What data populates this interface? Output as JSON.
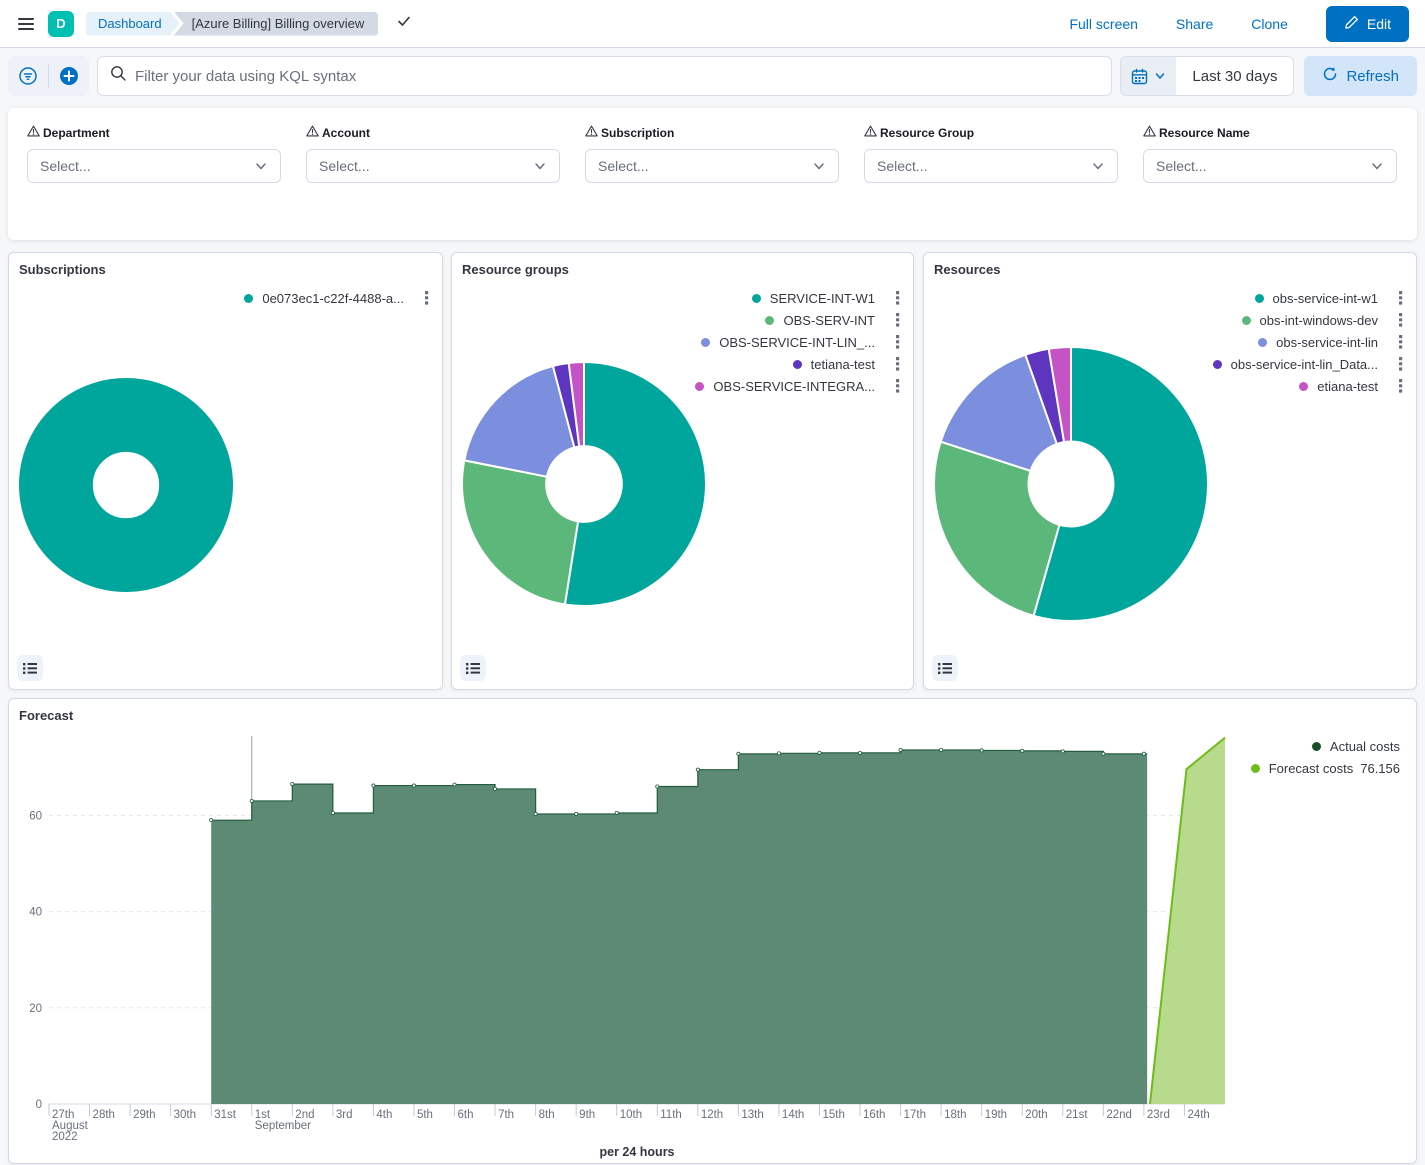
{
  "header": {
    "app_letter": "D",
    "breadcrumbs": [
      {
        "label": "Dashboard"
      },
      {
        "label": "[Azure Billing] Billing overview"
      }
    ],
    "actions": {
      "full_screen": "Full screen",
      "share": "Share",
      "clone": "Clone"
    },
    "edit_label": "Edit"
  },
  "query_bar": {
    "placeholder": "Filter your data using KQL syntax",
    "date_range": "Last 30 days",
    "refresh_label": "Refresh"
  },
  "filters": [
    {
      "label": "Department",
      "value": "Select..."
    },
    {
      "label": "Account",
      "value": "Select..."
    },
    {
      "label": "Subscription",
      "value": "Select..."
    },
    {
      "label": "Resource Group",
      "value": "Select..."
    },
    {
      "label": "Resource Name",
      "value": "Select..."
    }
  ],
  "colors": {
    "primary": "#0071c2",
    "avatar_teal": "#00bfb3",
    "pie_palette": [
      "#00a69b",
      "#5cb87a",
      "#7b8fde",
      "#5d35be",
      "#c553c5"
    ],
    "actual_line": "#235c40",
    "actual_fill": "#5c8a74",
    "actual_dot": "#174f28",
    "forecast_line": "#6cbd17",
    "forecast_fill": "#b8da8c"
  },
  "chart_data": [
    {
      "type": "pie",
      "title": "Subscriptions",
      "donut": true,
      "labels": [
        "0e073ec1-c22f-4488-a..."
      ],
      "values": [
        100
      ],
      "colors": [
        "#00a69b"
      ],
      "legend_position": "top-right"
    },
    {
      "type": "pie",
      "title": "Resource groups",
      "donut": true,
      "labels": [
        "SERVICE-INT-W1",
        "OBS-SERV-INT",
        "OBS-SERVICE-INT-LIN_...",
        "tetiana-test",
        "OBS-SERVICE-INTEGRA..."
      ],
      "values": [
        52.5,
        25.6,
        17.8,
        2.1,
        2.0
      ],
      "colors": [
        "#00a69b",
        "#5cb87a",
        "#7b8fde",
        "#5d35be",
        "#c553c5"
      ],
      "legend_position": "top-right"
    },
    {
      "type": "pie",
      "title": "Resources",
      "donut": true,
      "labels": [
        "obs-service-int-w1",
        "obs-int-windows-dev",
        "obs-service-int-lin",
        "obs-service-int-lin_Data...",
        "etiana-test"
      ],
      "values": [
        54.4,
        25.6,
        14.6,
        2.8,
        2.6
      ],
      "colors": [
        "#00a69b",
        "#5cb87a",
        "#7b8fde",
        "#5d35be",
        "#c553c5"
      ],
      "legend_position": "top-right"
    },
    {
      "type": "area",
      "title": "Forecast",
      "xlabel": "per 24 hours",
      "ylim": [
        0,
        76.5
      ],
      "yticks": [
        0,
        20,
        40,
        60
      ],
      "grid": "dashed-horizontal",
      "legend_position": "top-right",
      "x_tick_labels": [
        "27th",
        "28th",
        "29th",
        "30th",
        "31st",
        "1st",
        "2nd",
        "3rd",
        "4th",
        "5th",
        "6th",
        "7th",
        "8th",
        "9th",
        "10th",
        "11th",
        "12th",
        "13th",
        "14th",
        "15th",
        "16th",
        "17th",
        "18th",
        "19th",
        "20th",
        "21st",
        "22nd",
        "23rd",
        "24th"
      ],
      "x_context_labels": [
        {
          "index": 0,
          "lines": [
            "August",
            "2022"
          ]
        },
        {
          "index": 5,
          "lines": [
            "September"
          ]
        }
      ],
      "month_gridline_index": 5,
      "series": [
        {
          "name": "Actual costs",
          "mode": "step-area",
          "start_day_index": 4,
          "end_day_index": 27.08,
          "values": [
            59,
            63,
            66.5,
            60.5,
            66.2,
            66.2,
            66.4,
            65.5,
            60.3,
            60.3,
            60.5,
            66,
            69.5,
            72.8,
            72.9,
            73,
            73,
            73.6,
            73.6,
            73.5,
            73.4,
            73.3,
            72.8,
            72.8
          ]
        },
        {
          "name": "Forecast costs",
          "value_label": "76.156",
          "mode": "line-area",
          "points": [
            [
              27.15,
              0
            ],
            [
              28.05,
              69.6
            ],
            [
              29,
              76.156
            ]
          ]
        }
      ]
    }
  ]
}
